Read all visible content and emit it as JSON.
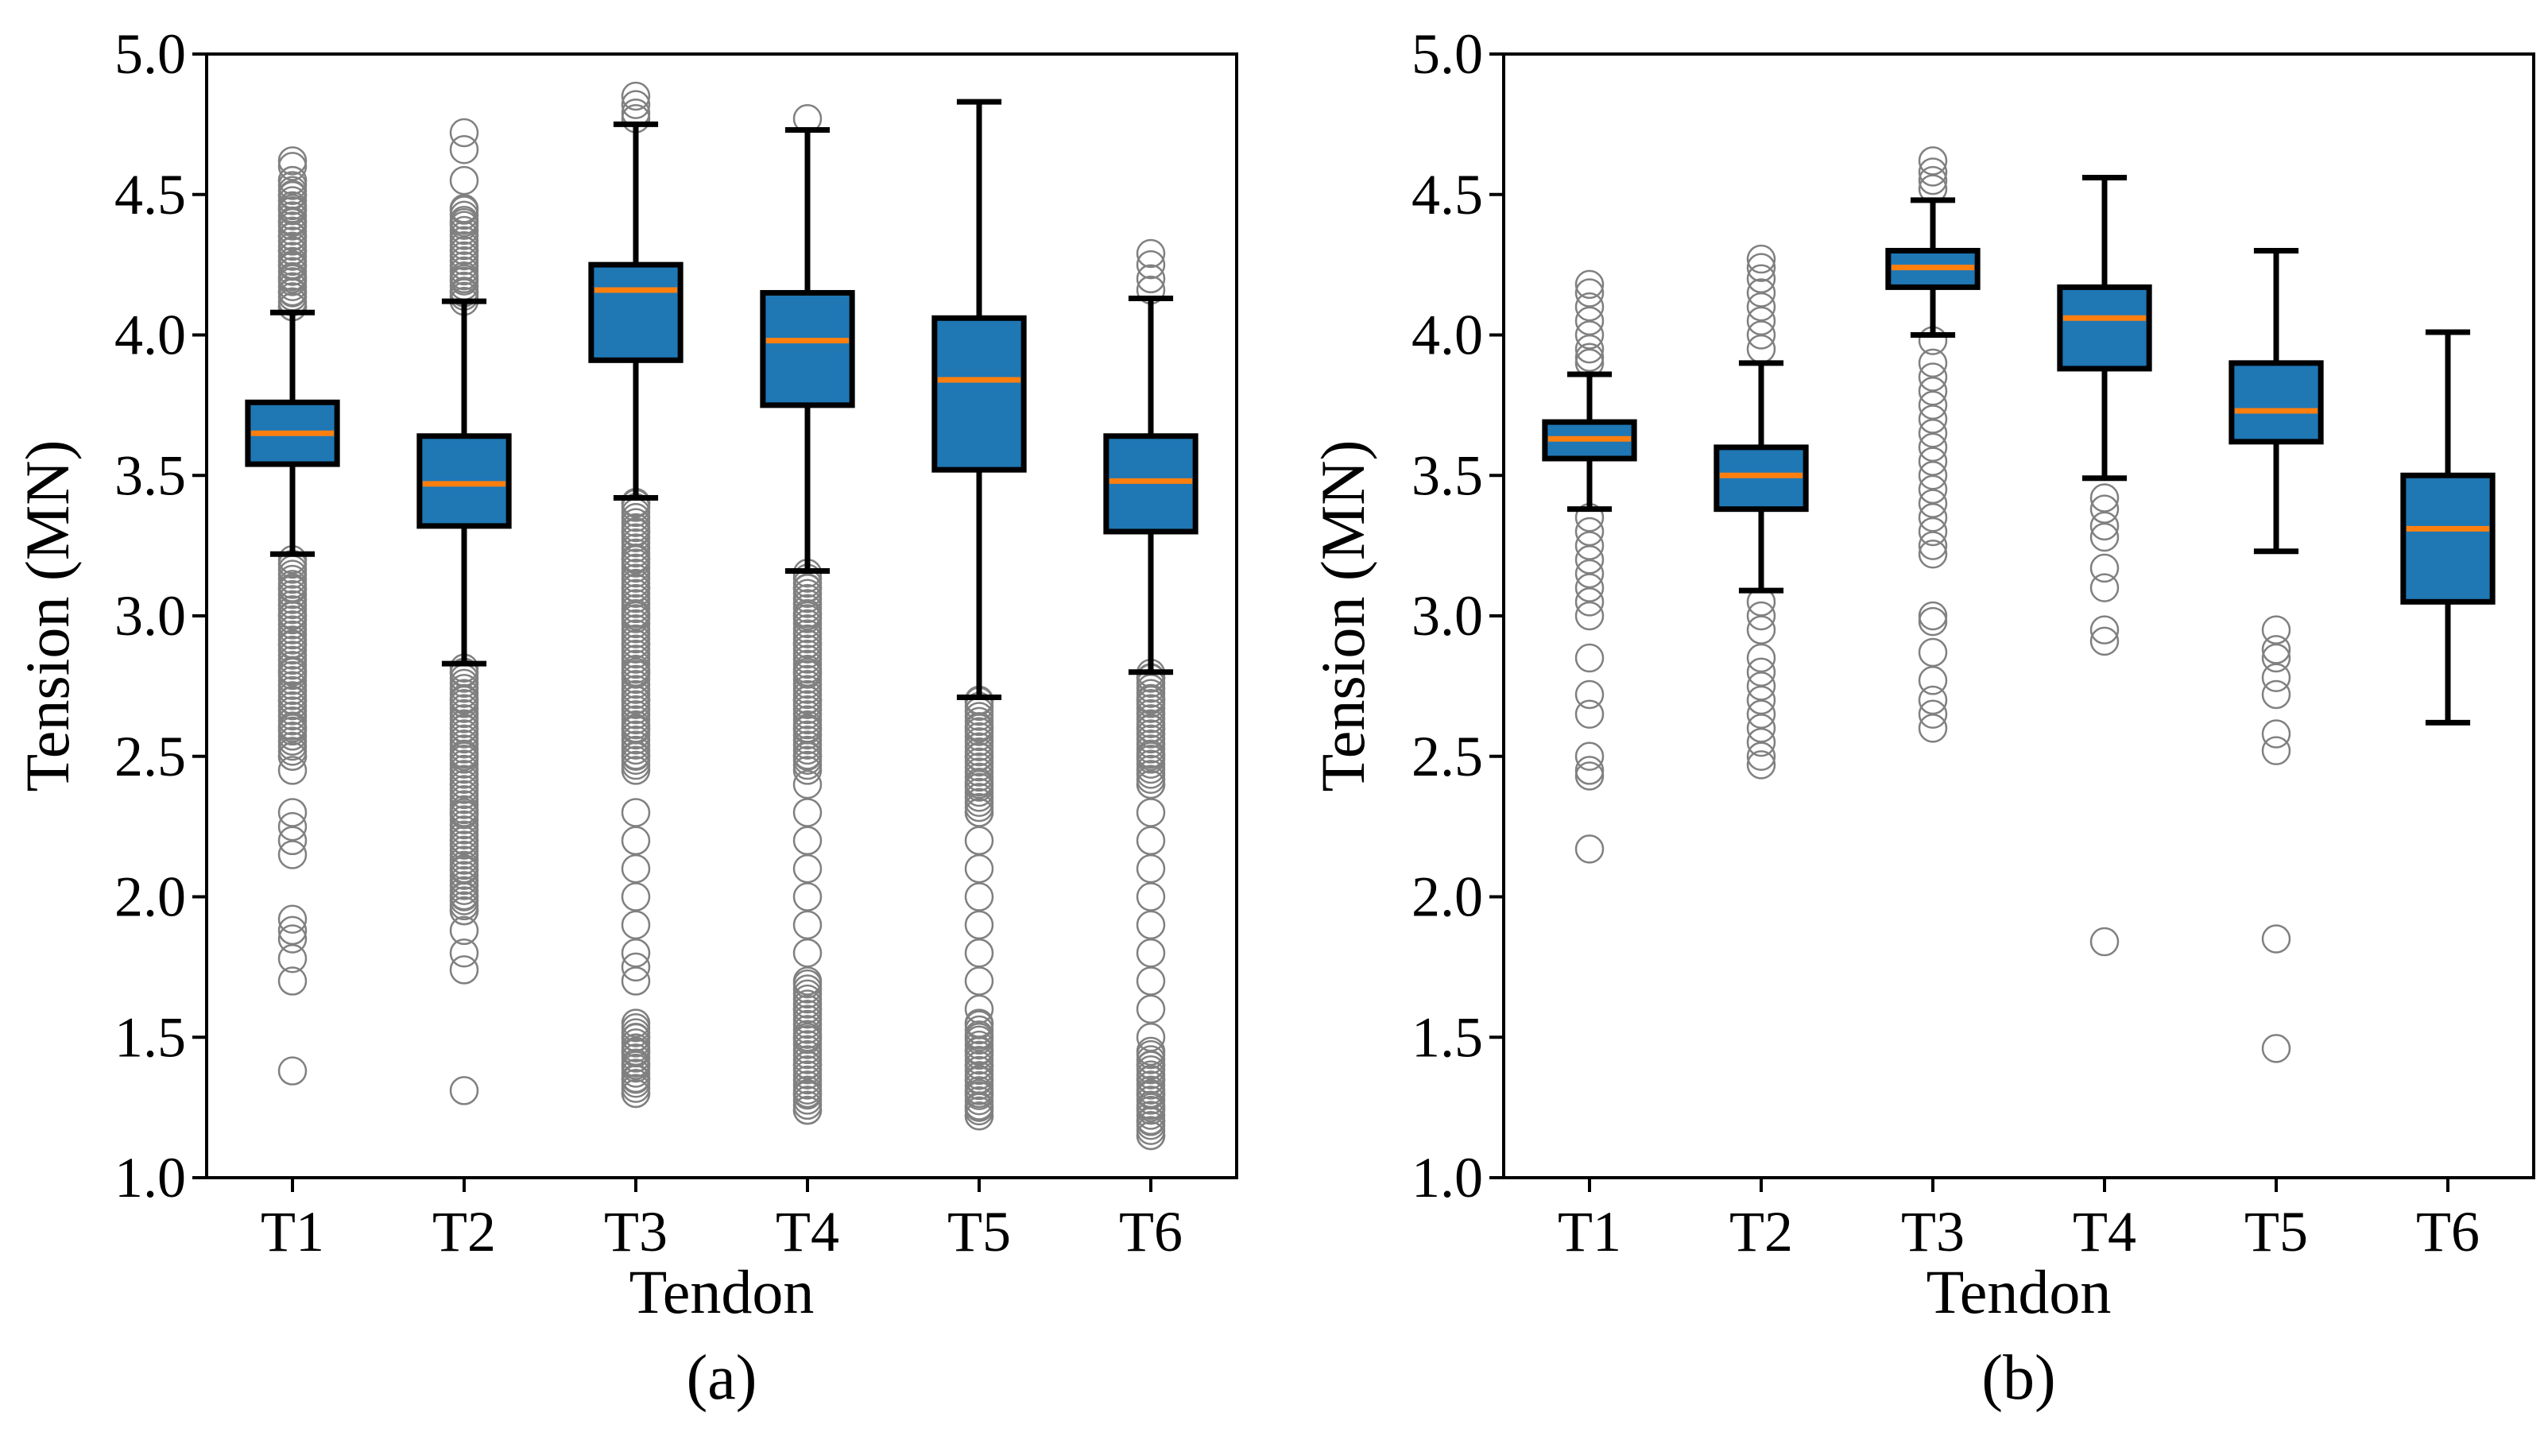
{
  "chart_data": [
    {
      "type": "box",
      "panel": "a",
      "caption": "(a)",
      "xlabel": "Tendon",
      "ylabel": "Tension (MN)",
      "ylim": [
        1.0,
        5.0
      ],
      "yticks": [
        "1.0",
        "1.5",
        "2.0",
        "2.5",
        "3.0",
        "3.5",
        "4.0",
        "4.5",
        "5.0"
      ],
      "categories": [
        "T1",
        "T2",
        "T3",
        "T4",
        "T5",
        "T6"
      ],
      "boxes": [
        {
          "label": "T1",
          "whisker_low": 3.22,
          "q1": 3.54,
          "median": 3.65,
          "q3": 3.76,
          "whisker_high": 4.08,
          "outliers": [
            4.62,
            4.6,
            4.55,
            4.5,
            4.45,
            4.4,
            4.35,
            4.3,
            4.25,
            4.2,
            4.15,
            4.1,
            3.2,
            3.1,
            3.0,
            2.9,
            2.8,
            2.7,
            2.6,
            2.5,
            2.45,
            2.3,
            2.25,
            2.2,
            2.15,
            1.92,
            1.88,
            1.85,
            1.78,
            1.7,
            1.38
          ],
          "dense_ranges": [
            [
              4.1,
              4.55
            ],
            [
              2.5,
              3.2
            ]
          ]
        },
        {
          "label": "T2",
          "whisker_low": 2.83,
          "q1": 3.32,
          "median": 3.47,
          "q3": 3.64,
          "whisker_high": 4.12,
          "outliers": [
            4.72,
            4.66,
            4.55,
            4.45,
            4.4,
            4.3,
            4.2,
            4.15,
            2.8,
            2.7,
            2.6,
            2.5,
            2.4,
            2.3,
            2.2,
            2.1,
            2.0,
            1.95,
            1.88,
            1.8,
            1.74,
            1.31
          ],
          "dense_ranges": [
            [
              4.12,
              4.45
            ],
            [
              1.95,
              2.82
            ]
          ]
        },
        {
          "label": "T3",
          "whisker_low": 3.42,
          "q1": 3.91,
          "median": 4.16,
          "q3": 4.25,
          "whisker_high": 4.75,
          "outliers": [
            4.85,
            4.82,
            4.79,
            4.77,
            3.4,
            3.3,
            3.2,
            3.1,
            3.0,
            2.9,
            2.8,
            2.7,
            2.6,
            2.5,
            2.3,
            2.2,
            2.1,
            2.0,
            1.9,
            1.8,
            1.75,
            1.7,
            1.55,
            1.5,
            1.45,
            1.4,
            1.35,
            1.3
          ],
          "dense_ranges": [
            [
              2.45,
              3.42
            ],
            [
              1.3,
              1.55
            ]
          ]
        },
        {
          "label": "T4",
          "whisker_low": 3.16,
          "q1": 3.75,
          "median": 3.98,
          "q3": 4.15,
          "whisker_high": 4.73,
          "outliers": [
            4.77,
            3.1,
            3.0,
            2.9,
            2.8,
            2.7,
            2.6,
            2.5,
            2.4,
            2.3,
            2.2,
            2.1,
            2.0,
            1.9,
            1.8,
            1.7,
            1.6,
            1.5,
            1.4,
            1.3,
            1.24
          ],
          "dense_ranges": [
            [
              2.45,
              3.16
            ],
            [
              1.24,
              1.7
            ]
          ]
        },
        {
          "label": "T5",
          "whisker_low": 2.71,
          "q1": 3.52,
          "median": 3.84,
          "q3": 4.06,
          "whisker_high": 4.83,
          "outliers": [
            2.7,
            2.6,
            2.5,
            2.4,
            2.3,
            2.2,
            2.1,
            2.0,
            1.9,
            1.8,
            1.7,
            1.6,
            1.55,
            1.5,
            1.45,
            1.4,
            1.35,
            1.3,
            1.25,
            1.22
          ],
          "dense_ranges": [
            [
              2.3,
              2.71
            ],
            [
              1.22,
              1.55
            ]
          ]
        },
        {
          "label": "T6",
          "whisker_low": 2.8,
          "q1": 3.3,
          "median": 3.48,
          "q3": 3.64,
          "whisker_high": 4.13,
          "outliers": [
            4.29,
            4.25,
            4.2,
            4.16,
            2.78,
            2.7,
            2.6,
            2.5,
            2.4,
            2.3,
            2.2,
            2.1,
            2.0,
            1.9,
            1.8,
            1.7,
            1.6,
            1.5,
            1.45,
            1.4,
            1.35,
            1.3,
            1.25,
            1.2,
            1.15
          ],
          "dense_ranges": [
            [
              2.4,
              2.8
            ],
            [
              1.15,
              1.45
            ]
          ]
        }
      ]
    },
    {
      "type": "box",
      "panel": "b",
      "caption": "(b)",
      "xlabel": "Tendon",
      "ylabel": "Tension (MN)",
      "ylim": [
        1.0,
        5.0
      ],
      "yticks": [
        "1.0",
        "1.5",
        "2.0",
        "2.5",
        "3.0",
        "3.5",
        "4.0",
        "4.5",
        "5.0"
      ],
      "categories": [
        "T1",
        "T2",
        "T3",
        "T4",
        "T5",
        "T6"
      ],
      "boxes": [
        {
          "label": "T1",
          "whisker_low": 3.38,
          "q1": 3.56,
          "median": 3.63,
          "q3": 3.69,
          "whisker_high": 3.86,
          "outliers": [
            4.18,
            4.15,
            4.1,
            4.05,
            4.0,
            3.95,
            3.92,
            3.9,
            3.35,
            3.3,
            3.25,
            3.2,
            3.15,
            3.1,
            3.05,
            3.0,
            2.85,
            2.72,
            2.65,
            2.5,
            2.45,
            2.43,
            2.17
          ]
        },
        {
          "label": "T2",
          "whisker_low": 3.09,
          "q1": 3.38,
          "median": 3.5,
          "q3": 3.6,
          "whisker_high": 3.9,
          "outliers": [
            4.27,
            4.24,
            4.2,
            4.15,
            4.1,
            4.05,
            4.0,
            3.95,
            3.05,
            3.0,
            2.95,
            2.85,
            2.8,
            2.75,
            2.7,
            2.65,
            2.6,
            2.55,
            2.5,
            2.47
          ]
        },
        {
          "label": "T3",
          "whisker_low": 4.0,
          "q1": 4.17,
          "median": 4.24,
          "q3": 4.3,
          "whisker_high": 4.48,
          "outliers": [
            4.62,
            4.58,
            4.55,
            4.52,
            3.98,
            3.9,
            3.85,
            3.8,
            3.75,
            3.7,
            3.65,
            3.6,
            3.55,
            3.5,
            3.45,
            3.4,
            3.35,
            3.3,
            3.25,
            3.22,
            3.0,
            2.98,
            2.87,
            2.77,
            2.7,
            2.65,
            2.6
          ]
        },
        {
          "label": "T4",
          "whisker_low": 3.49,
          "q1": 3.88,
          "median": 4.06,
          "q3": 4.17,
          "whisker_high": 4.56,
          "outliers": [
            3.42,
            3.38,
            3.32,
            3.28,
            3.17,
            3.1,
            2.95,
            2.91,
            1.84
          ]
        },
        {
          "label": "T5",
          "whisker_low": 3.23,
          "q1": 3.62,
          "median": 3.73,
          "q3": 3.9,
          "whisker_high": 4.3,
          "outliers": [
            2.95,
            2.88,
            2.85,
            2.78,
            2.72,
            2.58,
            2.52,
            1.85,
            1.46
          ]
        },
        {
          "label": "T6",
          "whisker_low": 2.62,
          "q1": 3.05,
          "median": 3.31,
          "q3": 3.5,
          "whisker_high": 4.01,
          "outliers": []
        }
      ]
    }
  ],
  "colors": {
    "box_fill": "#1f77b4",
    "median": "#ff7f0e",
    "outline": "#000000",
    "outlier": "#808080",
    "background": "#ffffff"
  }
}
